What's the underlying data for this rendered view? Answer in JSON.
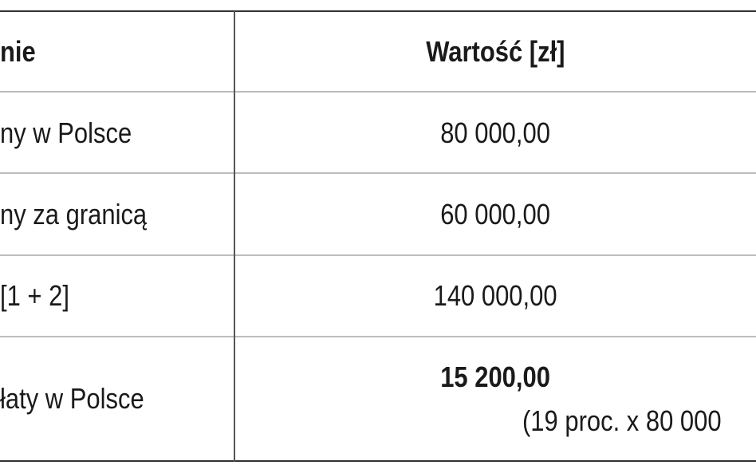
{
  "table": {
    "header": [
      "nie",
      "Wartość [zł]"
    ],
    "rows": [
      [
        "ny w Polsce",
        "80 000,00"
      ],
      [
        "ny za granicą",
        "60 000,00"
      ],
      [
        "[1 + 2]",
        "140 000,00"
      ],
      [
        "łaty w Polsce",
        "15 200,00",
        "(19 proc. x 80 000"
      ]
    ]
  }
}
